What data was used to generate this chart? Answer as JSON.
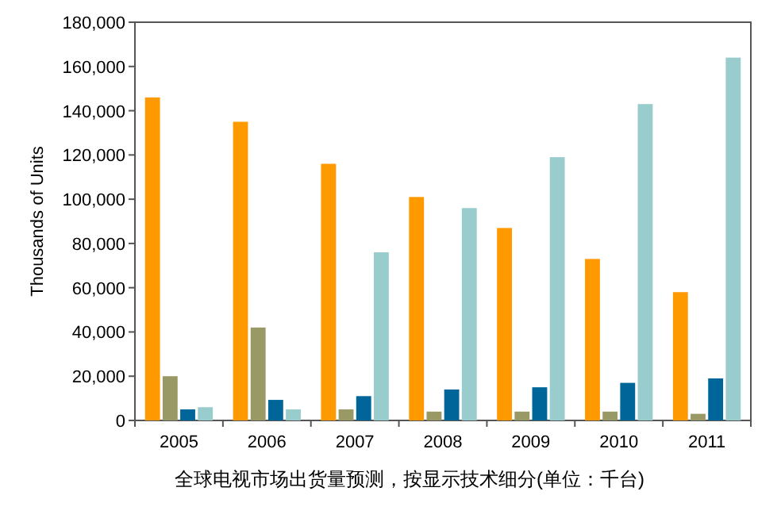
{
  "chart_data": {
    "type": "bar",
    "ylabel": "Thousands of Units",
    "categories": [
      "2005",
      "2006",
      "2007",
      "2008",
      "2009",
      "2010",
      "2011"
    ],
    "series": [
      {
        "color": "#ff9900",
        "values": [
          146000,
          135000,
          116000,
          101000,
          87000,
          73000,
          58000
        ]
      },
      {
        "color": "#999966",
        "values": [
          20000,
          42000,
          5000,
          4000,
          4000,
          4000,
          3000
        ]
      },
      {
        "color": "#006699",
        "values": [
          5000,
          9300,
          11000,
          14000,
          15000,
          17000,
          19000
        ]
      },
      {
        "color": "#99cccc",
        "values": [
          6000,
          5000,
          76000,
          96000,
          119000,
          143000,
          164000
        ]
      }
    ],
    "ylim": [
      0,
      180000
    ],
    "yticks": [
      {
        "value": 0,
        "label": "0"
      },
      {
        "value": 20000,
        "label": "20,000"
      },
      {
        "value": 40000,
        "label": "40,000"
      },
      {
        "value": 60000,
        "label": "60,000"
      },
      {
        "value": 80000,
        "label": "80,000"
      },
      {
        "value": 100000,
        "label": "100,000"
      },
      {
        "value": 120000,
        "label": "120,000"
      },
      {
        "value": 140000,
        "label": "140,000"
      },
      {
        "value": 160000,
        "label": "160,000"
      },
      {
        "value": 180000,
        "label": "180,000"
      }
    ],
    "grid": false,
    "annotations": [
      "全球电视市场出货量预测，按显示技术细分(单位：千台)"
    ]
  }
}
